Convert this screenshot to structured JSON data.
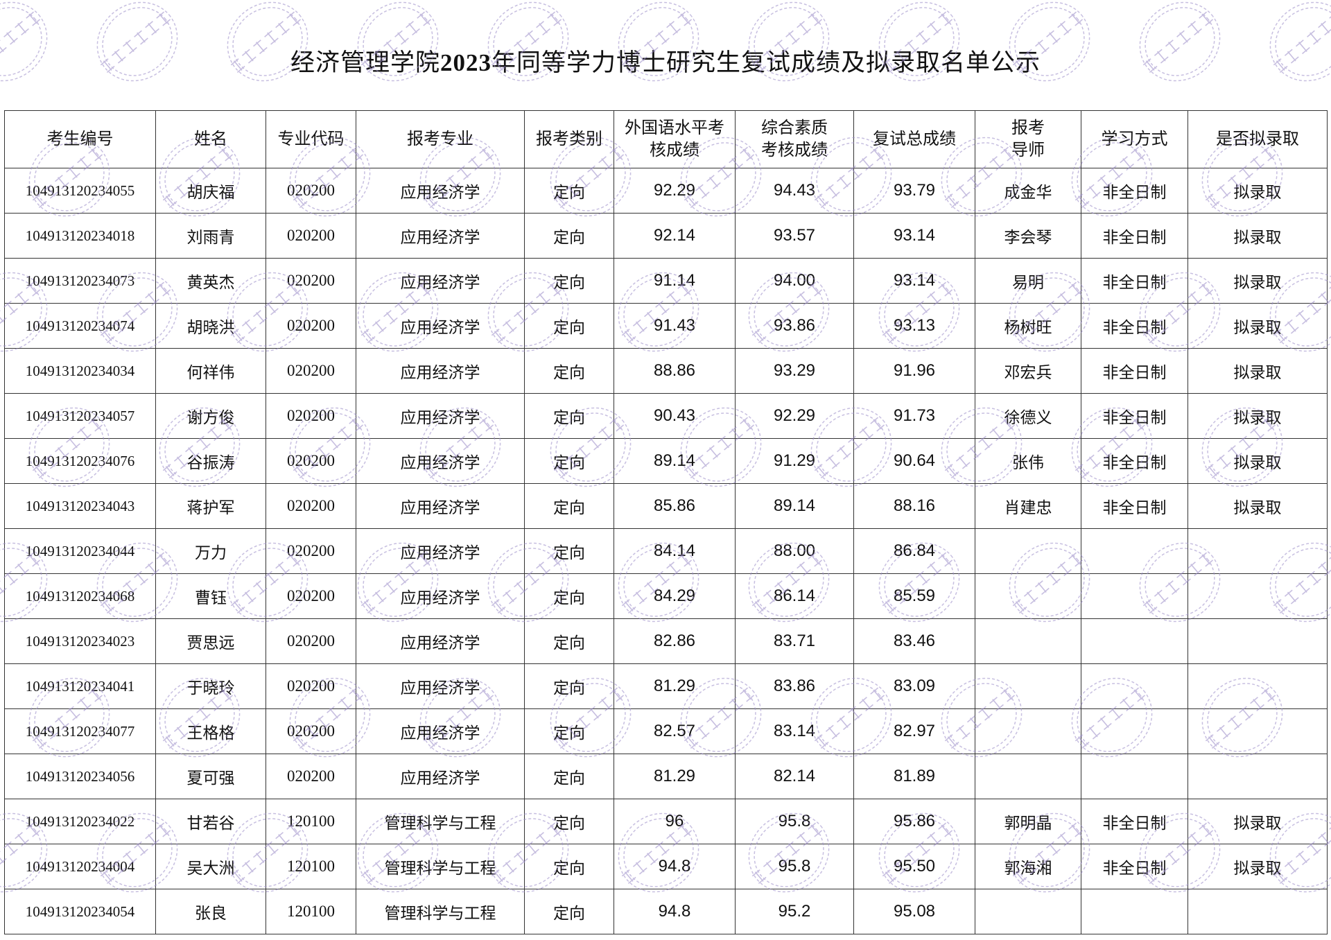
{
  "title": {
    "prefix": "经济管理学院",
    "year": "2023",
    "suffix": "年同等学力博士研究生复试成绩及拟录取名单公示"
  },
  "watermark": "经济管理学院",
  "watermark_color": "#9b8cc8",
  "columns": [
    "考生编号",
    "姓名",
    "专业代码",
    "报考专业",
    "报考类别",
    "外国语水平考\n核成绩",
    "综合素质\n考核成绩",
    "复试总成绩",
    "报考\n导师",
    "学习方式",
    "是否拟录取"
  ],
  "rows": [
    [
      "104913120234055",
      "胡庆福",
      "020200",
      "应用经济学",
      "定向",
      "92.29",
      "94.43",
      "93.79",
      "成金华",
      "非全日制",
      "拟录取"
    ],
    [
      "104913120234018",
      "刘雨青",
      "020200",
      "应用经济学",
      "定向",
      "92.14",
      "93.57",
      "93.14",
      "李会琴",
      "非全日制",
      "拟录取"
    ],
    [
      "104913120234073",
      "黄英杰",
      "020200",
      "应用经济学",
      "定向",
      "91.14",
      "94.00",
      "93.14",
      "易明",
      "非全日制",
      "拟录取"
    ],
    [
      "104913120234074",
      "胡晓洪",
      "020200",
      "应用经济学",
      "定向",
      "91.43",
      "93.86",
      "93.13",
      "杨树旺",
      "非全日制",
      "拟录取"
    ],
    [
      "104913120234034",
      "何祥伟",
      "020200",
      "应用经济学",
      "定向",
      "88.86",
      "93.29",
      "91.96",
      "邓宏兵",
      "非全日制",
      "拟录取"
    ],
    [
      "104913120234057",
      "谢方俊",
      "020200",
      "应用经济学",
      "定向",
      "90.43",
      "92.29",
      "91.73",
      "徐德义",
      "非全日制",
      "拟录取"
    ],
    [
      "104913120234076",
      "谷振涛",
      "020200",
      "应用经济学",
      "定向",
      "89.14",
      "91.29",
      "90.64",
      "张伟",
      "非全日制",
      "拟录取"
    ],
    [
      "104913120234043",
      "蒋护军",
      "020200",
      "应用经济学",
      "定向",
      "85.86",
      "89.14",
      "88.16",
      "肖建忠",
      "非全日制",
      "拟录取"
    ],
    [
      "104913120234044",
      "万力",
      "020200",
      "应用经济学",
      "定向",
      "84.14",
      "88.00",
      "86.84",
      "",
      "",
      ""
    ],
    [
      "104913120234068",
      "曹钰",
      "020200",
      "应用经济学",
      "定向",
      "84.29",
      "86.14",
      "85.59",
      "",
      "",
      ""
    ],
    [
      "104913120234023",
      "贾思远",
      "020200",
      "应用经济学",
      "定向",
      "82.86",
      "83.71",
      "83.46",
      "",
      "",
      ""
    ],
    [
      "104913120234041",
      "于晓玲",
      "020200",
      "应用经济学",
      "定向",
      "81.29",
      "83.86",
      "83.09",
      "",
      "",
      ""
    ],
    [
      "104913120234077",
      "王格格",
      "020200",
      "应用经济学",
      "定向",
      "82.57",
      "83.14",
      "82.97",
      "",
      "",
      ""
    ],
    [
      "104913120234056",
      "夏可强",
      "020200",
      "应用经济学",
      "定向",
      "81.29",
      "82.14",
      "81.89",
      "",
      "",
      ""
    ],
    [
      "104913120234022",
      "甘若谷",
      "120100",
      "管理科学与工程",
      "定向",
      "96",
      "95.8",
      "95.86",
      "郭明晶",
      "非全日制",
      "拟录取"
    ],
    [
      "104913120234004",
      "吴大洲",
      "120100",
      "管理科学与工程",
      "定向",
      "94.8",
      "95.8",
      "95.50",
      "郭海湘",
      "非全日制",
      "拟录取"
    ],
    [
      "104913120234054",
      "张良",
      "120100",
      "管理科学与工程",
      "定向",
      "94.8",
      "95.2",
      "95.08",
      "",
      "",
      ""
    ]
  ]
}
